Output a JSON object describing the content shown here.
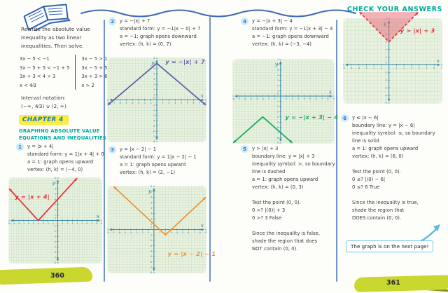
{
  "page": {
    "header": "CHECK YOUR ANSWERS",
    "callout": "The graph is on the next page!",
    "left_page_number": "360",
    "right_page_number": "361"
  },
  "icons": {
    "top_left": "open-notebook-icon",
    "callout_arrow": "curved-arrow-up-right-icon"
  },
  "colors": {
    "teal_heading": "#00a79d",
    "chapter_blue": "#187ac2",
    "highlight_yellow": "#f9ed3f",
    "badge_blue": "#cfe8f8",
    "divider_blue": "#6e93cf",
    "grid_green": "#e9f2e0",
    "swash_lime": "#c9d72e",
    "red": "#e8323c",
    "purple": "#5f5ca8",
    "orange": "#f0912d",
    "green": "#17a55a",
    "shade_pink": "rgba(233,86,105,0.45)"
  },
  "intro": {
    "instruction": "Rewrite the absolute value\ninequality as two linear\ninequalities. Then solve.",
    "work_left": "3x − 5 < −1\n3x − 5 + 5 < −1 + 5\n3x ÷ 3 < 4 ÷ 3\nx < 4⁄3",
    "work_right": "3x − 5 > 1\n3x − 5 + 5 > 1 + 5\n3x ÷ 3 > 6 ÷ 3\nx > 2",
    "interval": "Interval notation:\n(−∞, 4⁄3) ∪ (2, ∞)"
  },
  "chapter": {
    "badge": "CHAPTER 4",
    "title": "GRAPHING ABSOLUTE VALUE\nEQUATIONS AND INEQUALITIES"
  },
  "items": [
    {
      "num": "1",
      "text": "y = |x + 4|\nstandard form: y = 1|x + 4| + 0\na = 1: graph opens upward\nvertex: (h, k) = (−4, 0)"
    },
    {
      "num": "2",
      "text": "y = −|x| + 7\nstandard form: y = −1|x − 0| + 7\na = −1: graph opens downward\nvertex: (h, k) = (0, 7)"
    },
    {
      "num": "3",
      "text": "y = |x − 2| − 1\nstandard form: y = 1|x − 2| − 1\na = 1: graph opens upward\nvertex: (h, k) = (2, −1)"
    },
    {
      "num": "4",
      "text": "y = −|x + 3| − 4\nstandard form: y = −1|x + 3| − 4\na = −1: graph opens downward\nvertex: (h, k) = (−3, −4)"
    },
    {
      "num": "5",
      "text": "y > |x| + 3\nboundary line: y = |x| + 3\ninequality symbol: >, so boundary\nline is dashed\na = 1: graph opens upward\nvertex: (h, k) = (0, 3)\n\nTest the point (0, 0).\n0 >? |(0)| + 3\n0 >? 3  False\n\nSince the inequality is false,\nshade the region that does\nNOT contain (0, 0)."
    },
    {
      "num": "6",
      "text": "y ≤ |x − 6|\nboundary line: y = |x − 6|\ninequality symbol: ≤, so boundary\nline is solid\na = 1: graph opens upward\nvertex: (h, k) = (6, 0)\n\nTest the point (0, 0).\n0 ≤? |(0) − 6|\n0 ≤? 6  True\n\nSince the inequality is true,\nshade the region that\nDOES contain (0, 0)."
    }
  ],
  "chart_data": [
    {
      "type": "line",
      "shape": "absolute-value-v",
      "equation": "y = |x + 4|",
      "vertex": [
        -4,
        0
      ],
      "opens": "up",
      "a": 1,
      "dashed": false,
      "shaded": false,
      "color": "#e8323c",
      "label": {
        "text": "y = |x + 4|",
        "x": -8.8,
        "y": 4.1
      },
      "xrange": [
        -10,
        9
      ],
      "yrange": [
        -8,
        8
      ],
      "grid": true
    },
    {
      "type": "line",
      "shape": "absolute-value-v",
      "equation": "y = −|x| + 7",
      "vertex": [
        0,
        7
      ],
      "opens": "down",
      "a": -1,
      "dashed": false,
      "shaded": false,
      "color": "#5f5ca8",
      "label": {
        "text": "y = −|x| + 7",
        "x": 1.4,
        "y": 6.9
      },
      "xrange": [
        -8,
        8
      ],
      "yrange": [
        -8,
        8
      ],
      "grid": true
    },
    {
      "type": "line",
      "shape": "absolute-value-v",
      "equation": "y = |x − 2| − 1",
      "vertex": [
        2,
        -1
      ],
      "opens": "up",
      "a": 1,
      "dashed": false,
      "shaded": false,
      "color": "#f0912d",
      "label": {
        "text": "y = |x − 2| − 1",
        "x": 2.4,
        "y": -4.9
      },
      "xrange": [
        -8,
        9
      ],
      "yrange": [
        -8,
        8
      ],
      "grid": true
    },
    {
      "type": "line",
      "shape": "absolute-value-v",
      "equation": "y = −|x + 3| − 4",
      "vertex": [
        -3,
        -4
      ],
      "opens": "down",
      "a": -1,
      "dashed": false,
      "shaded": false,
      "color": "#17a55a",
      "label": {
        "text": "y = −|x + 3| − 4",
        "x": 0.8,
        "y": -4.4
      },
      "xrange": [
        -8,
        9
      ],
      "yrange": [
        -9,
        7
      ],
      "grid": true
    },
    {
      "type": "line",
      "shape": "absolute-value-v",
      "equation": "y > |x| + 3",
      "vertex": [
        0,
        3
      ],
      "opens": "up",
      "a": 1,
      "dashed": true,
      "shaded": true,
      "shade_color": "rgba(233,86,105,0.45)",
      "overshoot": 0.9,
      "color": "#e8323c",
      "label": {
        "text": "y > |x| + 3",
        "x": 1.5,
        "y": 4.2
      },
      "xrange": [
        -6,
        7
      ],
      "yrange": [
        -5,
        6
      ],
      "grid": true
    }
  ]
}
